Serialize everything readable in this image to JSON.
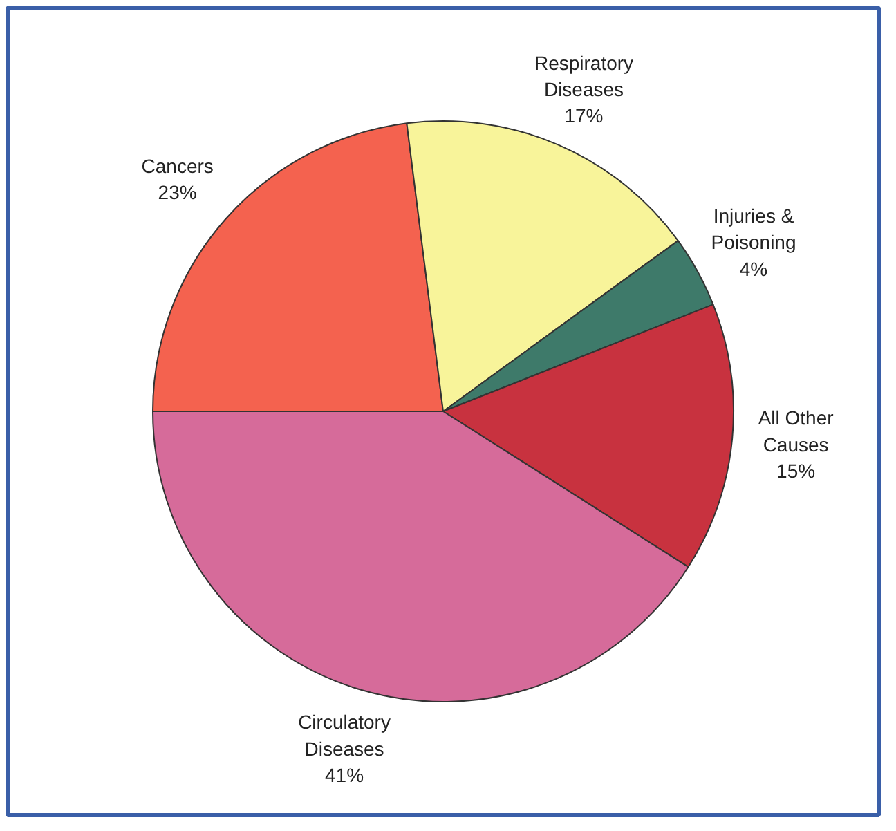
{
  "chart_data": {
    "type": "pie",
    "categories": [
      "Cancers",
      "Respiratory Diseases",
      "Injuries & Poisoning",
      "All Other Causes",
      "Circulatory Diseases"
    ],
    "values": [
      23,
      17,
      4,
      15,
      41
    ],
    "value_labels": [
      "23%",
      "17%",
      "4%",
      "15%",
      "41%"
    ],
    "colors": [
      "#f4624f",
      "#f8f49a",
      "#3e7a6a",
      "#c8323f",
      "#d66b9a"
    ]
  }
}
